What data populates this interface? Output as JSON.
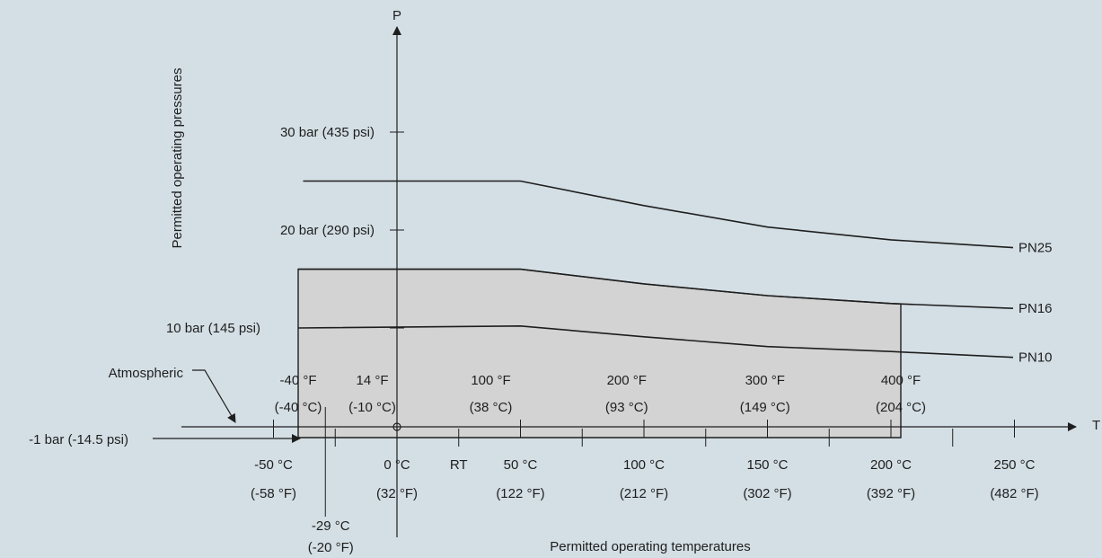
{
  "chart_data": {
    "type": "line",
    "xlabel": "T",
    "ylabel": "P",
    "x_title": "Permitted operating temperatures",
    "y_title": "Permitted operating pressures",
    "x_unit": "°C",
    "y_unit": "bar",
    "xlim": [
      -80,
      275
    ],
    "ylim": [
      -1,
      39
    ],
    "x_ticks_c": [
      -50,
      0,
      50,
      100,
      150,
      200,
      250
    ],
    "x_ticks_minor_c": [
      -29,
      -25,
      25,
      75,
      125,
      175,
      225
    ],
    "x_ticks_c_labels": [
      {
        "c": -50,
        "top": "-50 °C",
        "bottom": "(-58 °F)"
      },
      {
        "c": 0,
        "top": "0 °C",
        "bottom": "(32 °F)"
      },
      {
        "c": 50,
        "top": "50 °C",
        "bottom": "(122 °F)"
      },
      {
        "c": 100,
        "top": "100 °C",
        "bottom": "(212 °F)"
      },
      {
        "c": 150,
        "top": "150 °C",
        "bottom": "(302 °F)"
      },
      {
        "c": 200,
        "top": "200 °C",
        "bottom": "(392 °F)"
      },
      {
        "c": 250,
        "top": "250 °C",
        "bottom": "(482 °F)"
      }
    ],
    "rt_label": {
      "c": 25,
      "text": "RT"
    },
    "minus29_label": {
      "c": -29,
      "top": "-29 °C",
      "bottom": "(-20 °F)"
    },
    "x_ticks_f_labels": [
      {
        "c": -40,
        "top": "-40 °F",
        "bottom": "(-40 °C)"
      },
      {
        "c": -10,
        "top": "14 °F",
        "bottom": "(-10 °C)"
      },
      {
        "c": 38,
        "top": "100 °F",
        "bottom": "(38 °C)"
      },
      {
        "c": 93,
        "top": "200 °F",
        "bottom": "(93 °C)"
      },
      {
        "c": 149,
        "top": "300 °F",
        "bottom": "(149 °C)"
      },
      {
        "c": 204,
        "top": "400 °F",
        "bottom": "(204 °C)"
      }
    ],
    "y_ticks": [
      {
        "bar": 10,
        "label": "10 bar (145 psi)"
      },
      {
        "bar": 20,
        "label": "20 bar (290 psi)"
      },
      {
        "bar": 30,
        "label": "30 bar (435 psi)"
      }
    ],
    "y_bottom_label": {
      "bar": -1,
      "label": "-1 bar (-14.5 psi)"
    },
    "atmospheric_label": "Atmospheric",
    "series": [
      {
        "name": "PN25",
        "x": [
          -40,
          50,
          100,
          150,
          200,
          250
        ],
        "y": [
          25,
          25,
          22.5,
          20.3,
          19.0,
          18.2
        ]
      },
      {
        "name": "PN16",
        "x": [
          -40,
          50,
          100,
          150,
          200,
          250
        ],
        "y": [
          16,
          16,
          14.5,
          13.3,
          12.5,
          12.0
        ]
      },
      {
        "name": "PN10",
        "x": [
          -40,
          50,
          100,
          150,
          200,
          250
        ],
        "y": [
          10,
          10.2,
          9.1,
          8.1,
          7.6,
          7.0
        ]
      }
    ],
    "permitted_region": {
      "x_min": -40,
      "x_max": 204,
      "y_min": -1,
      "upper_series": "PN16"
    }
  }
}
